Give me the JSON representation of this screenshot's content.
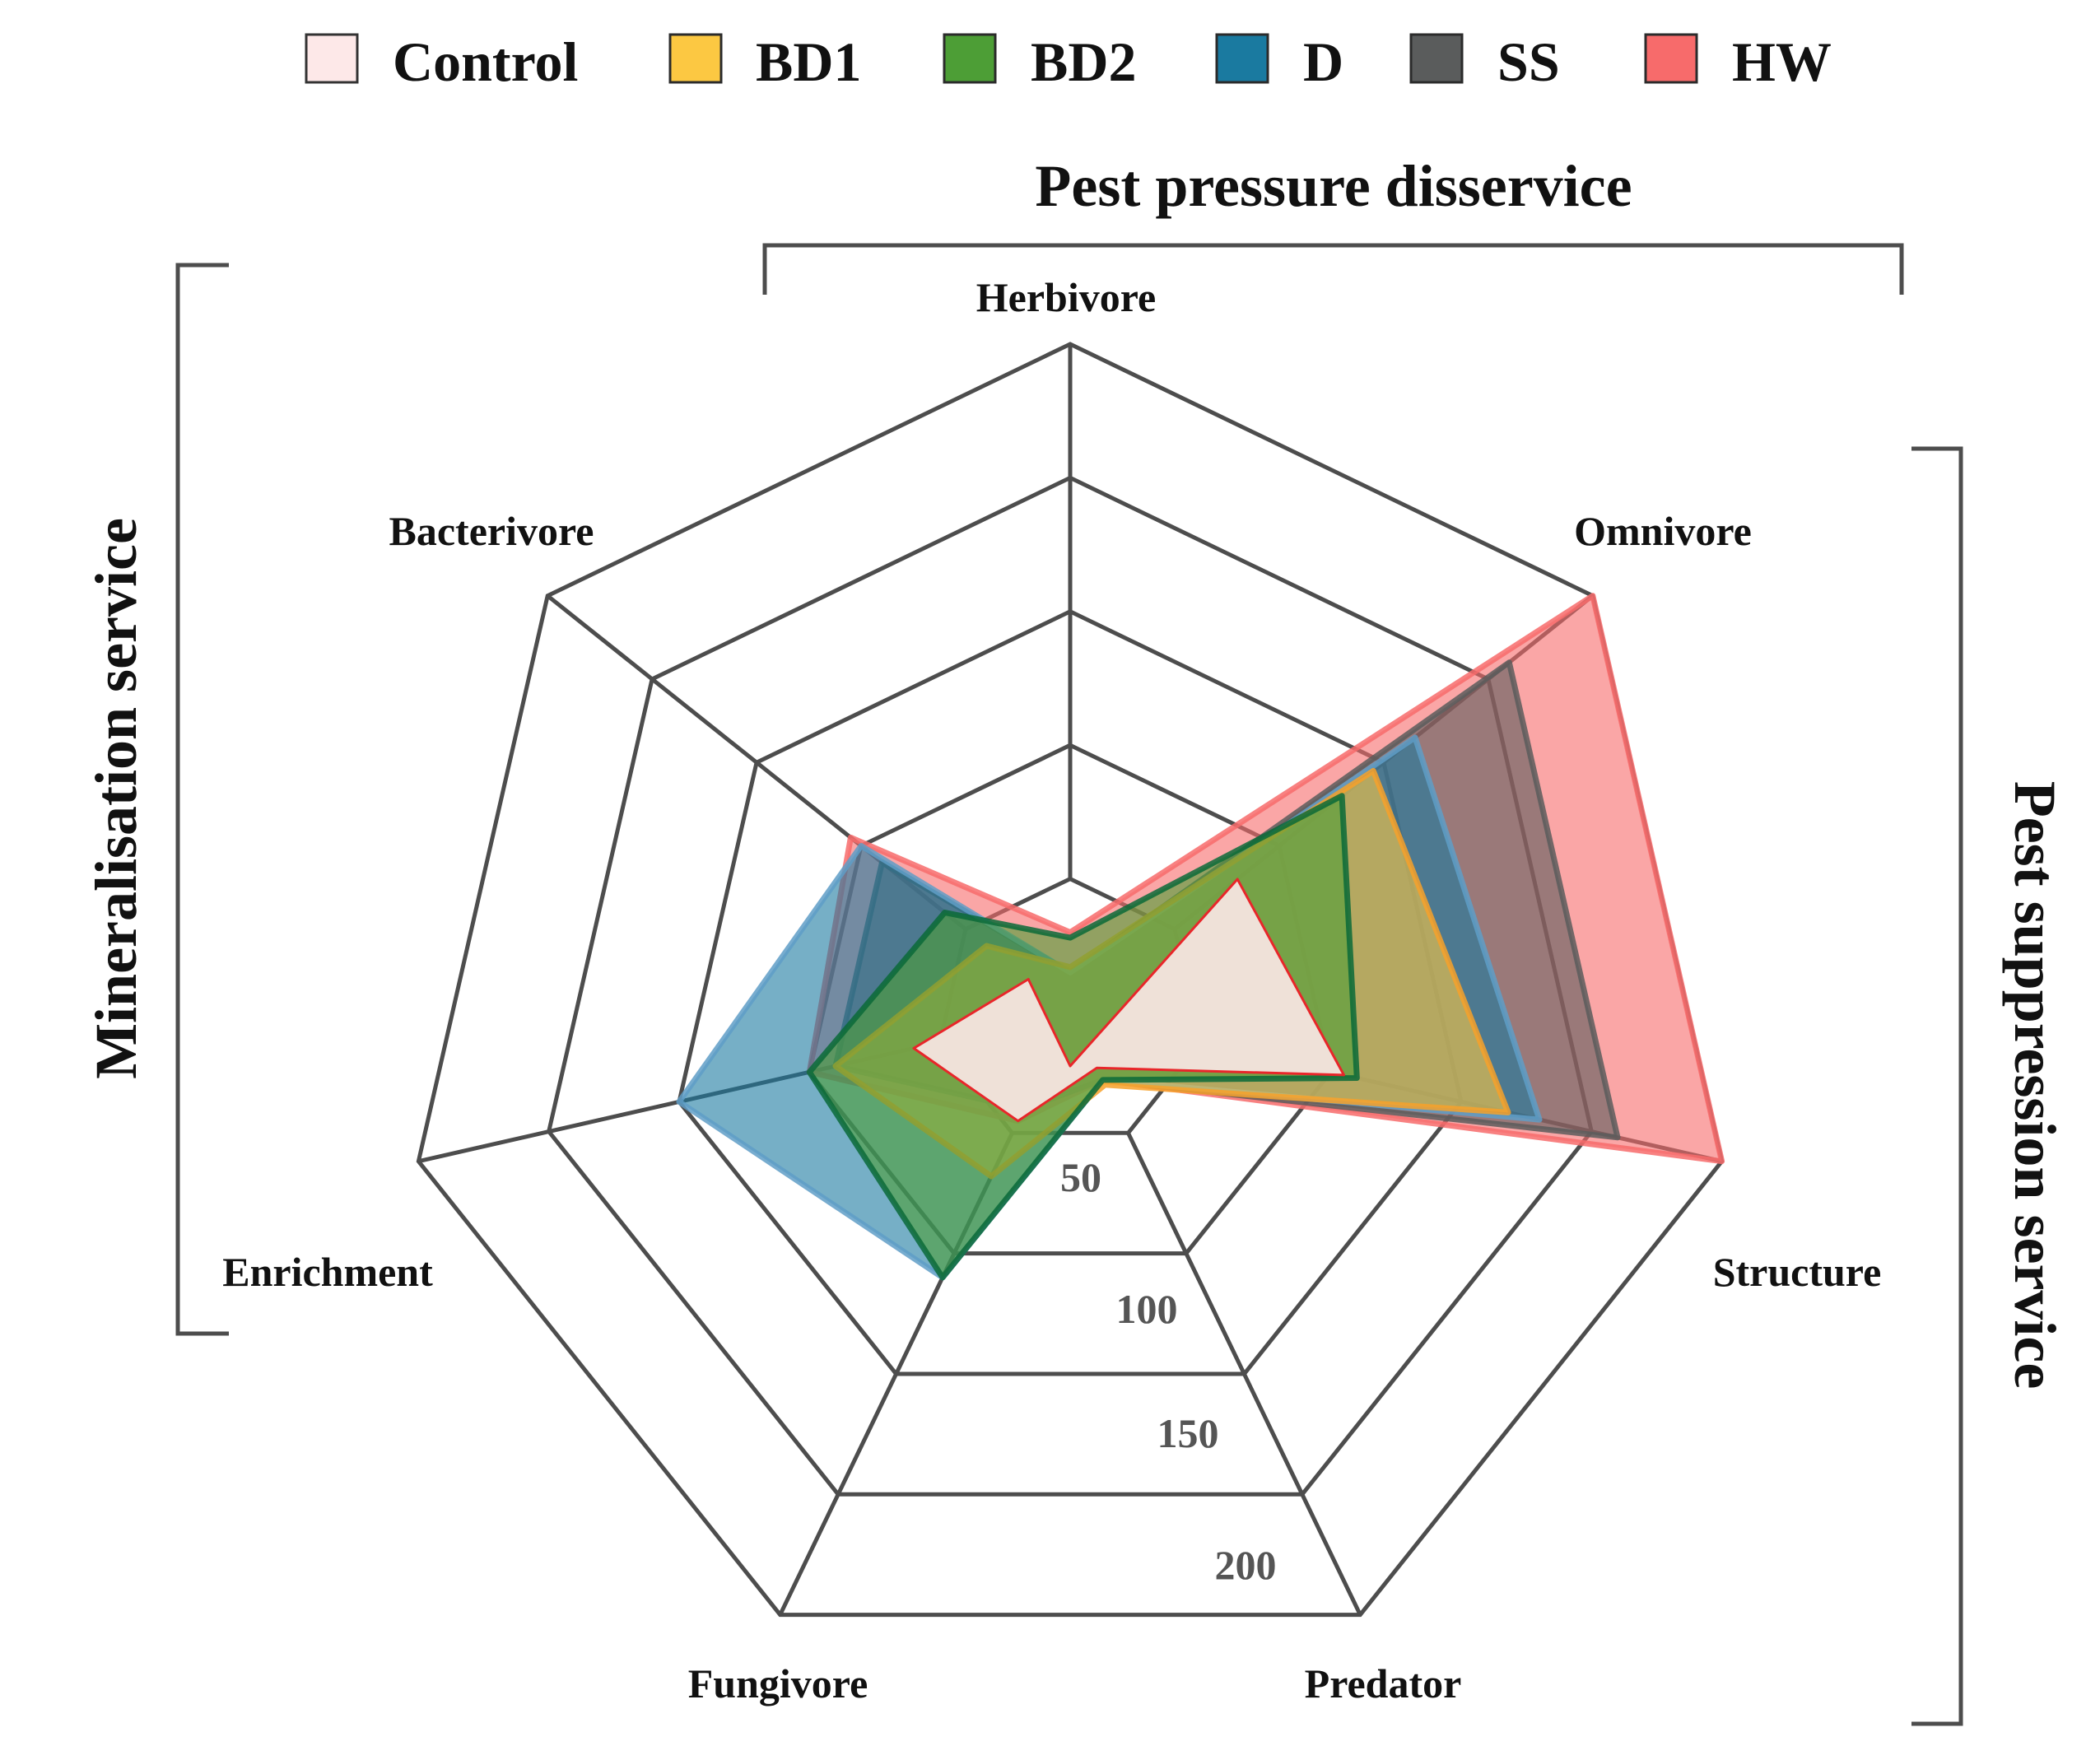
{
  "chart_data": {
    "type": "radar",
    "title": "",
    "axes": [
      "Herbivore",
      "Omnivore",
      "Structure",
      "Predator",
      "Fungivore",
      "Enrichment",
      "Bacterivore"
    ],
    "range": [
      0,
      250
    ],
    "ticks": [
      50,
      100,
      150,
      200
    ],
    "tick_labels": [
      "50",
      "100",
      "150",
      "200"
    ],
    "series": [
      {
        "name": "HW",
        "color": "#f76b6b",
        "edge": "#f76b6b",
        "values": [
          30,
          250,
          250,
          28,
          45,
          100,
          105
        ]
      },
      {
        "name": "SS",
        "color": "#5a5c5c",
        "edge": "#5a5c5c",
        "values": [
          15,
          210,
          210,
          28,
          40,
          90,
          90
        ]
      },
      {
        "name": "D",
        "color": "#1a7aa0",
        "edge": "#5f9ec7",
        "values": [
          15,
          165,
          180,
          28,
          110,
          150,
          100
        ]
      },
      {
        "name": "BD1",
        "color": "#fcc842",
        "edge": "#f7a12a",
        "values": [
          17,
          145,
          168,
          30,
          68,
          90,
          40
        ]
      },
      {
        "name": "BD2",
        "color": "#4d9e36",
        "edge": "#0a6a38",
        "values": [
          28,
          130,
          110,
          28,
          110,
          100,
          60
        ]
      },
      {
        "name": "Control",
        "color": "#fde8e8",
        "edge": "#e8262a",
        "values": [
          -20,
          80,
          105,
          23,
          45,
          60,
          20
        ]
      }
    ],
    "legend_order": [
      "Control",
      "BD1",
      "BD2",
      "D",
      "SS",
      "HW"
    ],
    "legend_position": "top",
    "groups": {
      "top": "Pest pressure disservice",
      "left": "Mineralisation service",
      "right": "Pest suppression service"
    }
  }
}
